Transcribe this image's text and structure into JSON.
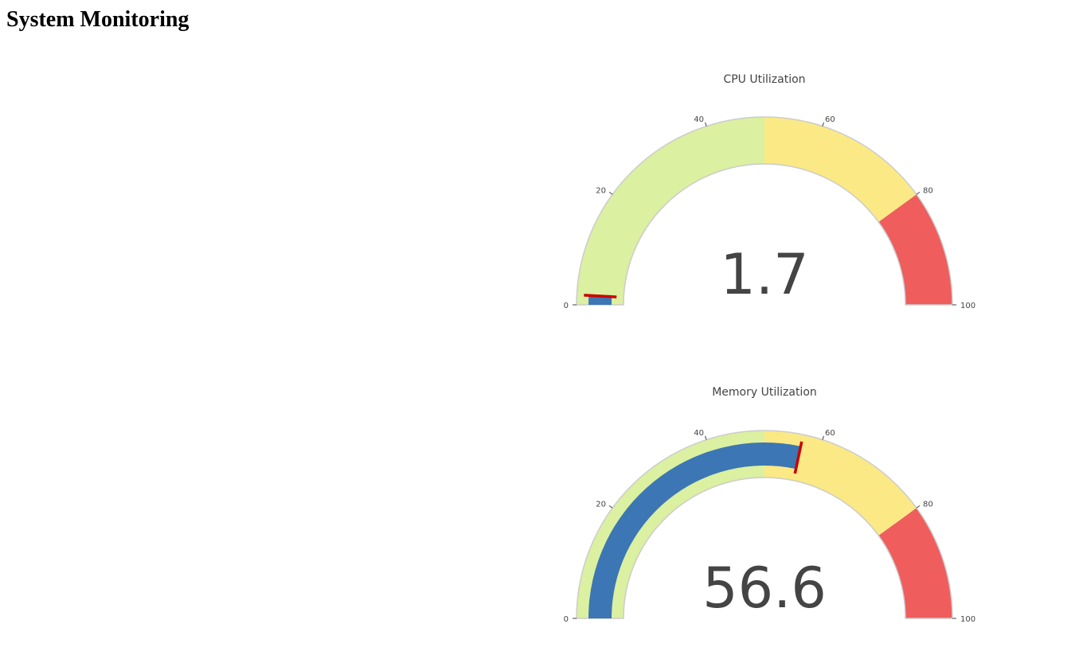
{
  "page": {
    "title": "System Monitoring"
  },
  "chart_data": [
    {
      "type": "gauge",
      "title": "CPU Utilization",
      "value": 1.7,
      "value_label": "1.7",
      "range": [
        0,
        100
      ],
      "ticks": [
        0,
        20,
        40,
        60,
        80,
        100
      ],
      "tick_labels": [
        "0",
        "20",
        "40",
        "60",
        "80",
        "100"
      ],
      "threshold": 1.7,
      "steps": [
        {
          "range": [
            0,
            50
          ],
          "color": "#dbf0a0"
        },
        {
          "range": [
            50,
            80
          ],
          "color": "#fbe985"
        },
        {
          "range": [
            80,
            100
          ],
          "color": "#ef5d5d"
        }
      ],
      "bar_color": "#3c76b4",
      "threshold_color": "#cc0000"
    },
    {
      "type": "gauge",
      "title": "Memory Utilization",
      "value": 56.6,
      "value_label": "56.6",
      "range": [
        0,
        100
      ],
      "ticks": [
        0,
        20,
        40,
        60,
        80,
        100
      ],
      "tick_labels": [
        "0",
        "20",
        "40",
        "60",
        "80",
        "100"
      ],
      "threshold": 56.6,
      "steps": [
        {
          "range": [
            0,
            50
          ],
          "color": "#dbf0a0"
        },
        {
          "range": [
            50,
            80
          ],
          "color": "#fbe985"
        },
        {
          "range": [
            80,
            100
          ],
          "color": "#ef5d5d"
        }
      ],
      "bar_color": "#3c76b4",
      "threshold_color": "#cc0000"
    }
  ]
}
